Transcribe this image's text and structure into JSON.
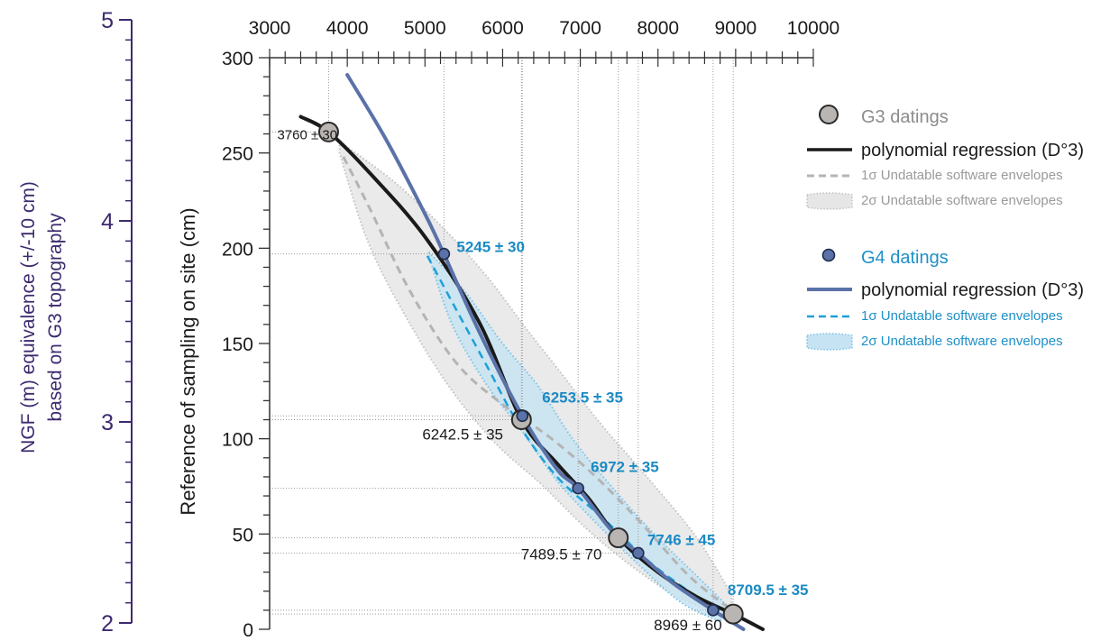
{
  "chart_data": {
    "type": "line",
    "x_axis": {
      "label": "",
      "lim": [
        3000,
        10000
      ],
      "ticks": [
        3000,
        4000,
        5000,
        6000,
        7000,
        8000,
        9000,
        10000
      ],
      "position": "top"
    },
    "y_axis": {
      "label": "Reference of sampling  on site  (cm)",
      "lim": [
        0,
        300
      ],
      "ticks": [
        0,
        50,
        100,
        150,
        200,
        250,
        300
      ]
    },
    "y2_axis": {
      "label_line1": "NGF (m) equivalence (+/-10 cm)",
      "label_line2": "based on G3 topography",
      "lim": [
        2,
        5
      ],
      "ticks": [
        2,
        3,
        4,
        5
      ],
      "color": "#3d2a6e"
    },
    "series": [
      {
        "name": "G3 datings",
        "kind": "points",
        "color": "#b9b5b2",
        "points": [
          {
            "x": 3760,
            "y": 261,
            "label": "3760 ± 30"
          },
          {
            "x": 6242.5,
            "y": 110,
            "label": "6242.5 ± 35"
          },
          {
            "x": 7489.5,
            "y": 48,
            "label": "7489.5 ± 70"
          },
          {
            "x": 8969,
            "y": 8,
            "label": "8969 ± 60"
          }
        ]
      },
      {
        "name": "G4 datings",
        "kind": "points",
        "color": "#5b72a8",
        "points": [
          {
            "x": 5245,
            "y": 197,
            "label": "5245 ± 30"
          },
          {
            "x": 6253.5,
            "y": 112,
            "label": "6253.5 ± 35"
          },
          {
            "x": 6972,
            "y": 74,
            "label": "6972 ± 35"
          },
          {
            "x": 7746,
            "y": 40,
            "label": "7746 ± 45"
          },
          {
            "x": 8709.5,
            "y": 10,
            "label": "8709.5 ± 35"
          }
        ]
      },
      {
        "name": "polynomial regression (D°3)",
        "kind": "line",
        "color": "#1a1a1a",
        "points": [
          [
            3400,
            269
          ],
          [
            3760,
            261
          ],
          [
            4300,
            239
          ],
          [
            5000,
            206
          ],
          [
            5700,
            161
          ],
          [
            6242.5,
            110
          ],
          [
            6700,
            87
          ],
          [
            7100,
            69
          ],
          [
            7489.5,
            48
          ],
          [
            8000,
            30
          ],
          [
            8500,
            17
          ],
          [
            8969,
            8
          ],
          [
            9350,
            0
          ]
        ]
      },
      {
        "name": "polynomial regression (D°3)",
        "kind": "line",
        "color": "#5b72a8",
        "points": [
          [
            4000,
            291
          ],
          [
            4500,
            257
          ],
          [
            5000,
            218
          ],
          [
            5245,
            197
          ],
          [
            5700,
            156
          ],
          [
            6253.5,
            112
          ],
          [
            6700,
            84
          ],
          [
            6972,
            74
          ],
          [
            7400,
            52
          ],
          [
            7746,
            40
          ],
          [
            8200,
            24
          ],
          [
            8709.5,
            10
          ],
          [
            9100,
            0
          ]
        ]
      },
      {
        "name": "1σ Undatable software envelopes",
        "kind": "dashed",
        "color": "#b4b4b4",
        "points": [
          [
            3950,
            248
          ],
          [
            4300,
            220
          ],
          [
            4800,
            178
          ],
          [
            5400,
            140
          ],
          [
            6000,
            118
          ],
          [
            6600,
            101
          ],
          [
            7200,
            80
          ],
          [
            7800,
            55
          ],
          [
            8400,
            28
          ],
          [
            8950,
            10
          ]
        ]
      },
      {
        "name": "1σ Undatable software envelopes",
        "kind": "dashed",
        "color": "#1ea0d8",
        "points": [
          [
            5030,
            196
          ],
          [
            5400,
            168
          ],
          [
            5800,
            138
          ],
          [
            6200,
            108
          ],
          [
            6700,
            80
          ],
          [
            7300,
            58
          ],
          [
            7900,
            35
          ],
          [
            8500,
            17
          ],
          [
            8800,
            9
          ]
        ]
      },
      {
        "name": "2σ Undatable software envelopes",
        "kind": "band",
        "color": "#e6e6e6",
        "upper": [
          [
            3900,
            256
          ],
          [
            4600,
            235
          ],
          [
            5250,
            210
          ],
          [
            5800,
            185
          ],
          [
            6300,
            158
          ],
          [
            6800,
            132
          ],
          [
            7300,
            106
          ],
          [
            7900,
            78
          ],
          [
            8500,
            48
          ],
          [
            8950,
            18
          ]
        ],
        "lower": [
          [
            3900,
            250
          ],
          [
            4250,
            205
          ],
          [
            4700,
            168
          ],
          [
            5300,
            128
          ],
          [
            5900,
            98
          ],
          [
            6500,
            76
          ],
          [
            7100,
            52
          ],
          [
            7700,
            32
          ],
          [
            8300,
            16
          ],
          [
            8950,
            6
          ]
        ]
      },
      {
        "name": "2σ Undatable software envelopes",
        "kind": "band",
        "color": "#c6e3f3",
        "upper": [
          [
            5050,
            198
          ],
          [
            5500,
            178
          ],
          [
            6000,
            150
          ],
          [
            6450,
            128
          ],
          [
            6900,
            100
          ],
          [
            7400,
            75
          ],
          [
            7950,
            50
          ],
          [
            8500,
            28
          ],
          [
            8900,
            12
          ]
        ],
        "lower": [
          [
            5050,
            196
          ],
          [
            5350,
            160
          ],
          [
            5800,
            128
          ],
          [
            6250,
            104
          ],
          [
            6700,
            78
          ],
          [
            7200,
            56
          ],
          [
            7800,
            32
          ],
          [
            8300,
            14
          ],
          [
            8800,
            4
          ]
        ]
      }
    ],
    "legend": {
      "placement": "right",
      "items": [
        {
          "label": "G3 datings",
          "marker": "circle-grey",
          "color": "#8c8c8c"
        },
        {
          "label": "polynomial regression (D°3)",
          "marker": "line-black",
          "color": "#1a1a1a"
        },
        {
          "label": "1σ Undatable software envelopes",
          "marker": "dash-grey",
          "color": "#9a9a9a"
        },
        {
          "label": "2σ Undatable software envelopes",
          "marker": "band-grey",
          "color": "#9a9a9a"
        },
        {
          "label": "G4 datings",
          "marker": "circle-blue",
          "color": "#1e90c8"
        },
        {
          "label": "polynomial regression (D°3)",
          "marker": "line-blue",
          "color": "#1a1a1a"
        },
        {
          "label": "1σ Undatable software envelopes",
          "marker": "dash-blue",
          "color": "#1e90c8"
        },
        {
          "label": "2σ Undatable software envelopes",
          "marker": "band-blue",
          "color": "#1e90c8"
        }
      ]
    },
    "grid": "dotted guides from data points to axes"
  }
}
